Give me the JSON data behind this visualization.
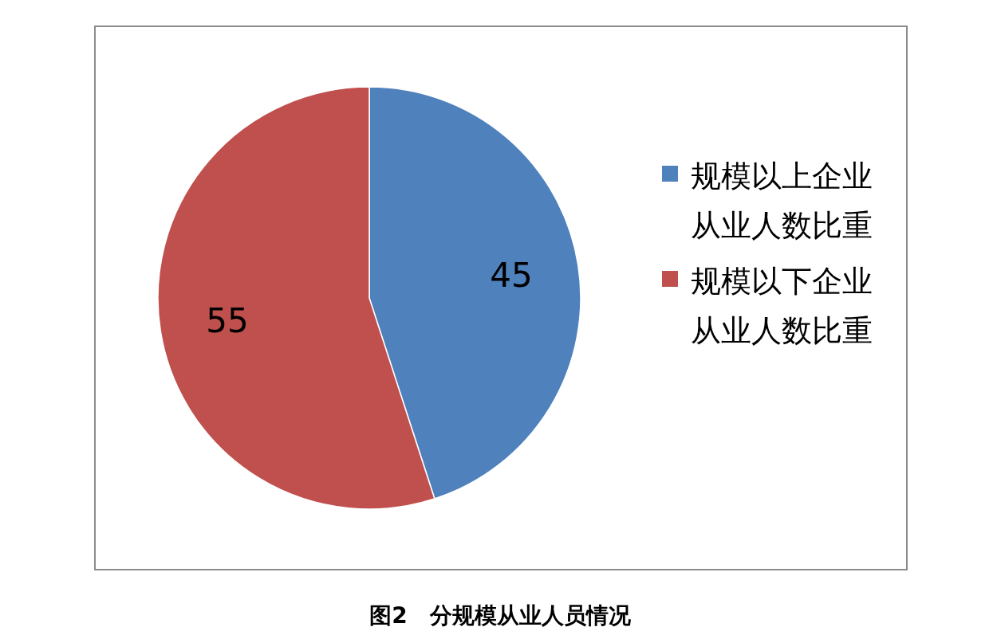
{
  "chart_data": {
    "type": "pie",
    "title": "图2　分规模从业人员情况",
    "categories": [
      "规模以上企业从业人数比重",
      "规模以下企业从业人数比重"
    ],
    "values": [
      45,
      55
    ],
    "colors": [
      "#4f81bd",
      "#c0504d"
    ],
    "data_labels": true,
    "legend": "right"
  }
}
